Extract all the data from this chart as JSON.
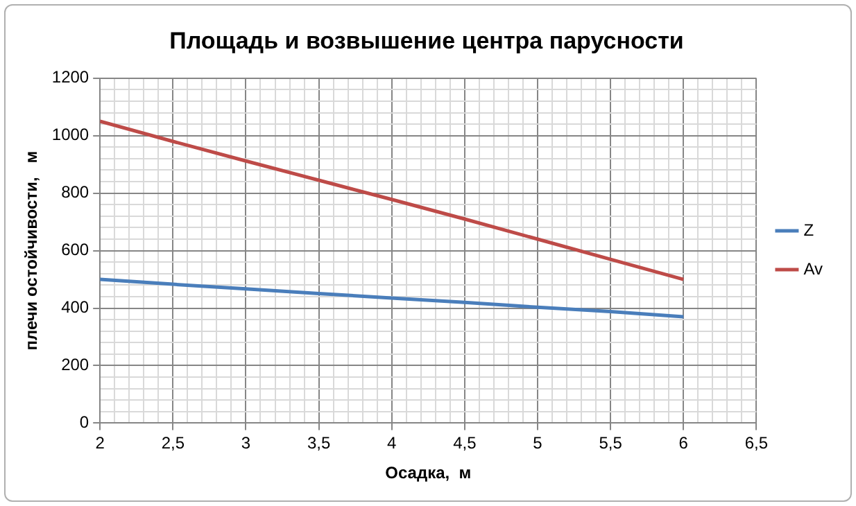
{
  "chart_data": {
    "type": "line",
    "title": "Площадь и возвышение центра парусности",
    "xlabel": "Осадка,  м",
    "ylabel": "плечи остойчивости,   м",
    "x": [
      2,
      2.5,
      3,
      3.5,
      4,
      4.5,
      5,
      5.5,
      6
    ],
    "series": [
      {
        "name": "Z",
        "color": "#4a7ebb",
        "values": [
          500,
          483,
          467,
          451,
          435,
          420,
          403,
          388,
          370
        ]
      },
      {
        "name": "Av",
        "color": "#be4b48",
        "values": [
          1050,
          980,
          912,
          845,
          778,
          710,
          640,
          570,
          500
        ]
      }
    ],
    "xlim": [
      2,
      6.5
    ],
    "xticks": [
      2,
      {
        "value": 2.1,
        "label": null
      },
      {
        "value": 2.2,
        "label": null
      },
      {
        "value": 2.3,
        "label": null
      },
      {
        "value": 2.4,
        "label": null
      },
      {
        "value": 2.5,
        "label": "2,5"
      },
      {
        "value": 2.6,
        "label": null
      },
      {
        "value": 2.7,
        "label": null
      },
      {
        "value": 2.8,
        "label": null
      },
      {
        "value": 2.9,
        "label": null
      },
      3,
      {
        "value": 3.1,
        "label": null
      },
      {
        "value": 3.2,
        "label": null
      },
      {
        "value": 3.3,
        "label": null
      },
      {
        "value": 3.4,
        "label": null
      },
      {
        "value": 3.5,
        "label": "3,5"
      },
      {
        "value": 3.6,
        "label": null
      },
      {
        "value": 3.7,
        "label": null
      },
      {
        "value": 3.8,
        "label": null
      },
      {
        "value": 3.9,
        "label": null
      },
      4,
      {
        "value": 4.1,
        "label": null
      },
      {
        "value": 4.2,
        "label": null
      },
      {
        "value": 4.3,
        "label": null
      },
      {
        "value": 4.4,
        "label": null
      },
      {
        "value": 4.5,
        "label": "4,5"
      },
      {
        "value": 4.6,
        "label": null
      },
      {
        "value": 4.7,
        "label": null
      },
      {
        "value": 4.8,
        "label": null
      },
      {
        "value": 4.9,
        "label": null
      },
      5,
      {
        "value": 5.1,
        "label": null
      },
      {
        "value": 5.2,
        "label": null
      },
      {
        "value": 5.3,
        "label": null
      },
      {
        "value": 5.4,
        "label": null
      },
      {
        "value": 5.5,
        "label": "5,5"
      },
      {
        "value": 5.6,
        "label": null
      },
      {
        "value": 5.7,
        "label": null
      },
      {
        "value": 5.8,
        "label": null
      },
      {
        "value": 5.9,
        "label": null
      },
      6,
      {
        "value": 6.1,
        "label": null
      },
      {
        "value": 6.2,
        "label": null
      },
      {
        "value": 6.3,
        "label": null
      },
      {
        "value": 6.4,
        "label": null
      },
      {
        "value": 6.5,
        "label": "6,5"
      }
    ],
    "ylim": [
      0,
      1200
    ],
    "yticks": [
      0,
      {
        "value": 40,
        "label": null
      },
      {
        "value": 80,
        "label": null
      },
      {
        "value": 120,
        "label": null
      },
      {
        "value": 160,
        "label": null
      },
      200,
      {
        "value": 240,
        "label": null
      },
      {
        "value": 280,
        "label": null
      },
      {
        "value": 320,
        "label": null
      },
      {
        "value": 360,
        "label": null
      },
      400,
      {
        "value": 440,
        "label": null
      },
      {
        "value": 480,
        "label": null
      },
      {
        "value": 520,
        "label": null
      },
      {
        "value": 560,
        "label": null
      },
      600,
      {
        "value": 640,
        "label": null
      },
      {
        "value": 680,
        "label": null
      },
      {
        "value": 720,
        "label": null
      },
      {
        "value": 760,
        "label": null
      },
      800,
      {
        "value": 840,
        "label": null
      },
      {
        "value": 880,
        "label": null
      },
      {
        "value": 920,
        "label": null
      },
      {
        "value": 960,
        "label": null
      },
      1000,
      {
        "value": 1040,
        "label": null
      },
      {
        "value": 1080,
        "label": null
      },
      {
        "value": 1120,
        "label": null
      },
      {
        "value": 1160,
        "label": null
      },
      1200
    ],
    "grid": true,
    "legend": "right",
    "marker": "none",
    "line_style": "solid"
  }
}
